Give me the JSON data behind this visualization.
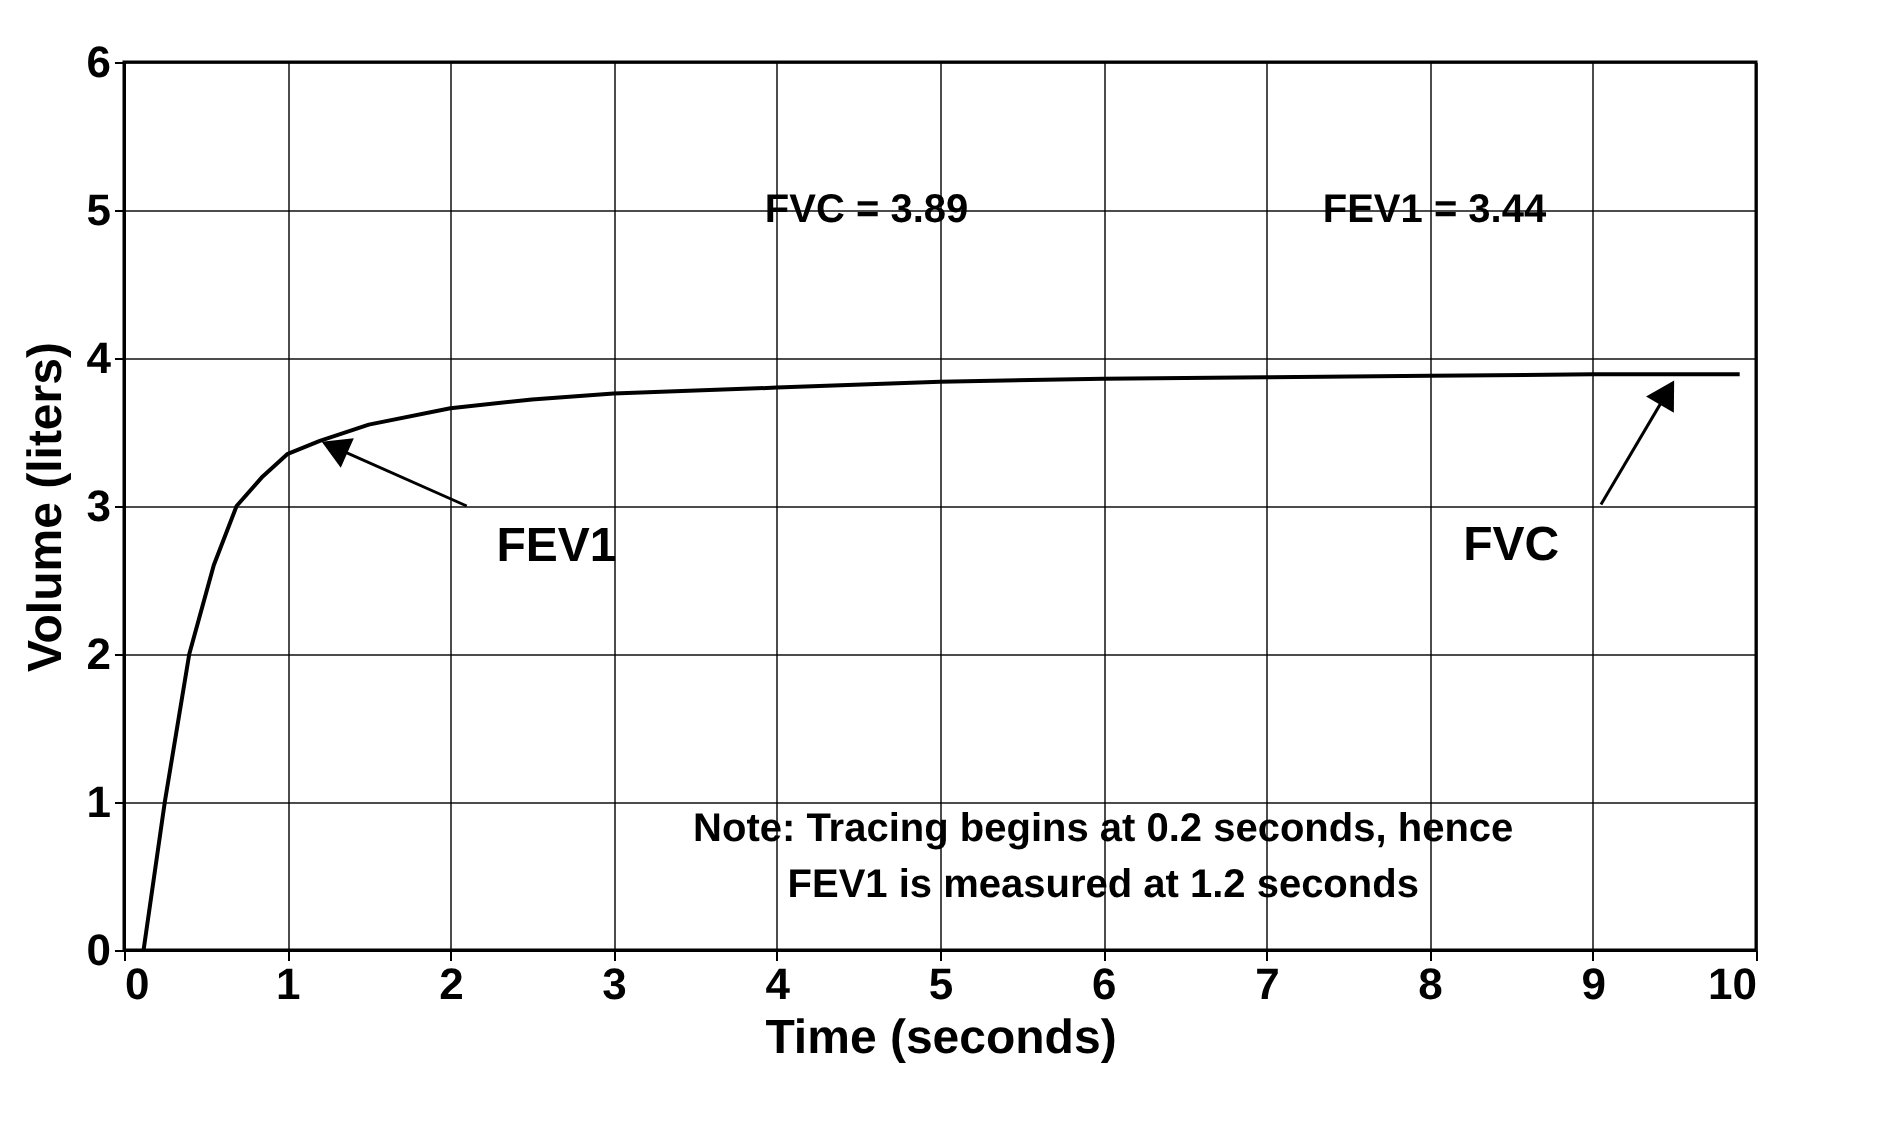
{
  "chart_data": {
    "type": "line",
    "xlabel": "Time (seconds)",
    "ylabel": "Volume (liters)",
    "x": [
      0.12,
      0.25,
      0.4,
      0.55,
      0.69,
      0.85,
      1,
      1.2,
      1.5,
      2,
      2.5,
      3,
      4,
      5,
      6,
      7,
      8,
      9,
      9.9
    ],
    "series": [
      {
        "color": "#000000",
        "values": [
          0,
          1,
          2,
          2.6,
          3,
          3.2,
          3.35,
          3.44,
          3.55,
          3.66,
          3.72,
          3.76,
          3.8,
          3.84,
          3.86,
          3.87,
          3.88,
          3.89,
          3.89
        ]
      }
    ],
    "xlim": [
      0,
      10
    ],
    "xticks": [
      0,
      1,
      2,
      3,
      4,
      5,
      6,
      7,
      8,
      9,
      10
    ],
    "ylim": [
      0,
      6
    ],
    "yticks": [
      0,
      1,
      2,
      3,
      4,
      5,
      6
    ],
    "grid": true,
    "annotations": [
      "FVC = 3.89",
      "FEV1 = 3.44",
      {
        "text": "FEV1",
        "x": 1.2,
        "y": 3.44
      },
      {
        "text": "FVC",
        "x": 9.5,
        "y": 3.85
      },
      "Note: Tracing begins at 0.2 seconds, hence\nFEV1 is measured at 1.2 seconds"
    ]
  }
}
